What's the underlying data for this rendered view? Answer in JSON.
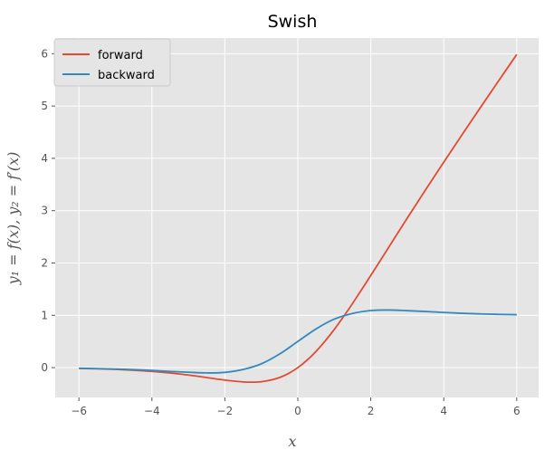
{
  "chart_data": {
    "type": "line",
    "title": "Swish",
    "xlabel": "x",
    "ylabel": "y₁ = f(x), y₂ = f′(x)",
    "xlim": [
      -6.65,
      6.6
    ],
    "ylim": [
      -0.57,
      6.3
    ],
    "xticks": [
      -6,
      -4,
      -2,
      0,
      2,
      4,
      6
    ],
    "xtick_labels": [
      "−6",
      "−4",
      "−2",
      "0",
      "2",
      "4",
      "6"
    ],
    "yticks": [
      0,
      1,
      2,
      3,
      4,
      5,
      6
    ],
    "ytick_labels": [
      "0",
      "1",
      "2",
      "3",
      "4",
      "5",
      "6"
    ],
    "grid": true,
    "legend_position": "top-left",
    "background": "#e5e5e5",
    "series": [
      {
        "name": "forward",
        "color": "#e24a33",
        "x": [
          -6,
          -5.5,
          -5,
          -4.5,
          -4,
          -3.5,
          -3,
          -2.5,
          -2,
          -1.5,
          -1.25,
          -1,
          -0.75,
          -0.5,
          -0.25,
          0,
          0.25,
          0.5,
          0.75,
          1,
          1.25,
          1.5,
          2,
          2.5,
          3,
          3.5,
          4,
          4.5,
          5,
          5.5,
          6
        ],
        "values": [
          -0.0148,
          -0.0224,
          -0.0335,
          -0.0497,
          -0.0719,
          -0.1023,
          -0.1423,
          -0.1896,
          -0.2384,
          -0.2736,
          -0.2779,
          -0.2689,
          -0.24,
          -0.1888,
          -0.11,
          0,
          0.14,
          0.3112,
          0.51,
          0.7311,
          0.9721,
          1.2264,
          1.7616,
          2.3104,
          2.8577,
          3.3977,
          3.9281,
          4.4503,
          4.9665,
          5.4776,
          5.9852
        ]
      },
      {
        "name": "backward",
        "color": "#348abd",
        "x": [
          -6,
          -5.5,
          -5,
          -4.5,
          -4,
          -3.5,
          -3,
          -2.5,
          -2,
          -1.5,
          -1,
          -0.5,
          0,
          0.5,
          1,
          1.5,
          2,
          2.5,
          3,
          3.5,
          4,
          4.5,
          5,
          5.5,
          6
        ],
        "values": [
          -0.0123,
          -0.0181,
          -0.0266,
          -0.0385,
          -0.0542,
          -0.0733,
          -0.0881,
          -0.1012,
          -0.0908,
          -0.0353,
          0.0723,
          0.26,
          0.5,
          0.74,
          0.9277,
          1.0353,
          1.0908,
          1.1012,
          1.0881,
          1.0733,
          1.0542,
          1.0385,
          1.0266,
          1.0181,
          1.0123
        ]
      }
    ]
  }
}
